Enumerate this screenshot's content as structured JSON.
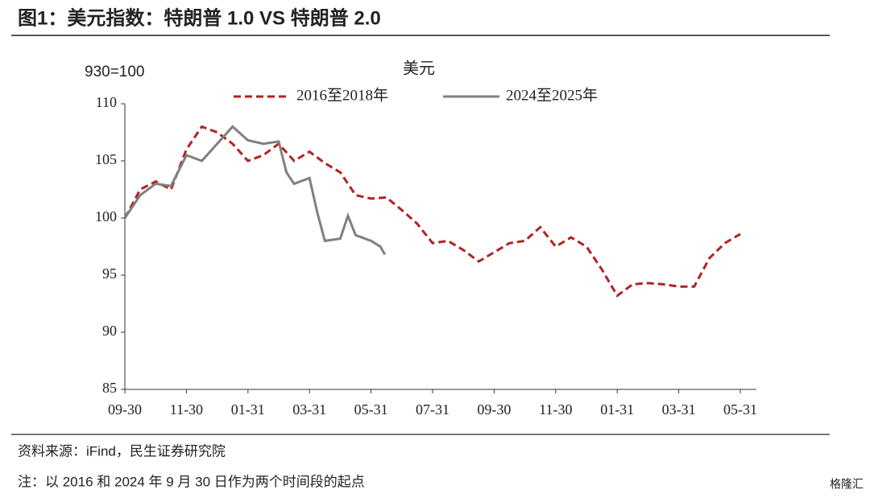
{
  "header": {
    "title": "图1：美元指数：特朗普 1.0 VS  特朗普 2.0"
  },
  "chart_data": {
    "type": "line",
    "title": "美元",
    "y_label": "930=100",
    "xlim": [
      0,
      20
    ],
    "xticks": [
      {
        "value": 0,
        "label": "09-30"
      },
      {
        "value": 2,
        "label": "11-30"
      },
      {
        "value": 4,
        "label": "01-31"
      },
      {
        "value": 6,
        "label": "03-31"
      },
      {
        "value": 8,
        "label": "05-31"
      },
      {
        "value": 10,
        "label": "07-31"
      },
      {
        "value": 12,
        "label": "09-30"
      },
      {
        "value": 14,
        "label": "11-30"
      },
      {
        "value": 16,
        "label": "01-31"
      },
      {
        "value": 18,
        "label": "03-31"
      },
      {
        "value": 20,
        "label": "05-31"
      }
    ],
    "ylim": [
      85,
      110
    ],
    "yticks": [
      85,
      90,
      95,
      100,
      105,
      110
    ],
    "grid": false,
    "series": [
      {
        "name": "2016至2018年",
        "color": "#b22222",
        "style": "dashed",
        "x": [
          0,
          0.5,
          1,
          1.5,
          2,
          2.5,
          3,
          3.5,
          4,
          4.5,
          5,
          5.5,
          6,
          6.5,
          7,
          7.5,
          8,
          8.5,
          9,
          9.5,
          10,
          10.5,
          11,
          11.5,
          12,
          12.5,
          13,
          13.5,
          14,
          14.5,
          15,
          15.5,
          16,
          16.5,
          17,
          17.5,
          18,
          18.5,
          19,
          19.5,
          20
        ],
        "values": [
          100,
          102.5,
          103.2,
          102.5,
          106,
          108,
          107.5,
          106.5,
          105,
          105.5,
          106.5,
          105,
          105.8,
          104.8,
          104,
          102,
          101.7,
          101.8,
          100.7,
          99.5,
          97.8,
          98,
          97.2,
          96.2,
          97,
          97.8,
          98,
          99.2,
          97.5,
          98.3,
          97.5,
          95.5,
          93.2,
          94.2,
          94.3,
          94.2,
          94,
          94,
          96.5,
          97.8,
          98.6
        ]
      },
      {
        "name": "2024至2025年",
        "color": "#808080",
        "style": "solid",
        "x": [
          0,
          0.5,
          1,
          1.5,
          2,
          2.5,
          3,
          3.5,
          4,
          4.5,
          5,
          5.25,
          5.5,
          6,
          6.25,
          6.5,
          7,
          7.25,
          7.5,
          8,
          8.3,
          8.45
        ],
        "values": [
          100,
          102,
          103,
          102.8,
          105.5,
          105,
          106.5,
          108,
          106.8,
          106.5,
          106.7,
          104,
          103,
          103.5,
          100.5,
          98,
          98.2,
          100.2,
          98.5,
          98,
          97.5,
          96.8
        ]
      }
    ]
  },
  "footer": {
    "source": "资料来源：iFind，民生证券研究院",
    "note": "注：以 2016 和 2024 年 9 月 30 日作为两个时间段的起点",
    "watermark": "格隆汇"
  }
}
